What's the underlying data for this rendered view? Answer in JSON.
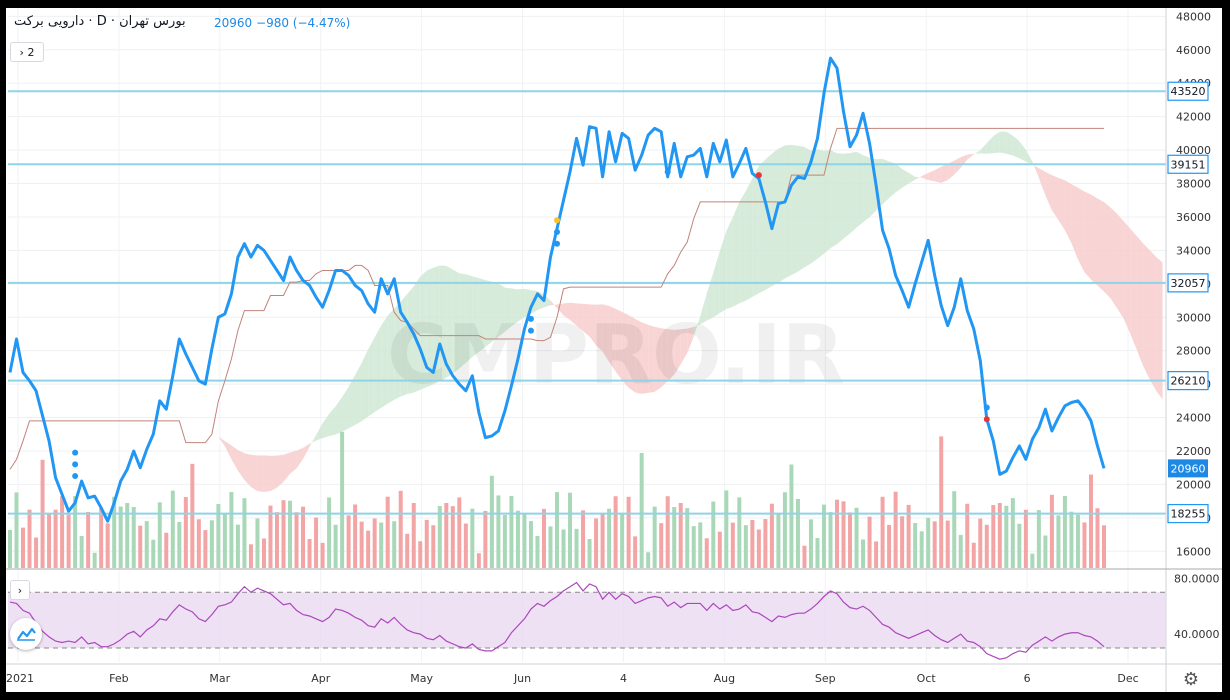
{
  "header": {
    "name": "بورس تهران · D · دارویی برکت",
    "price": "20960",
    "change": "−980 (−4.47%)"
  },
  "controls": {
    "studies_count": "2",
    "osc_toggle": "›"
  },
  "watermark": "CMPRO.IR",
  "colors": {
    "price_line": "#2196f3",
    "base_line": "#c0847b",
    "cloud_green": "#cfe8d3",
    "cloud_red": "#f8cccc",
    "hline": "#8fd3e8",
    "label_bg": "#2196f3",
    "label_current": "#1e88e5",
    "vol_green": "#a9d8b8",
    "vol_red": "#f3a5a5",
    "rsi_line": "#ab47bc",
    "rsi_band": "#ead7f0"
  },
  "chart_data": [
    {
      "type": "line",
      "title": "",
      "x_tick_labels": [
        "2021",
        "Feb",
        "Mar",
        "Apr",
        "May",
        "Jun",
        "4",
        "Aug",
        "Sep",
        "Oct",
        "6",
        "Dec"
      ],
      "y_ticks": [
        16000,
        18000,
        20000,
        22000,
        24000,
        26000,
        28000,
        30000,
        32000,
        34000,
        36000,
        38000,
        40000,
        42000,
        44000,
        46000,
        48000
      ],
      "ylim": [
        15000,
        48500
      ],
      "horizontal_levels": [
        43520,
        39151,
        32057,
        26210,
        18255
      ],
      "current_price": 20960,
      "series": [
        {
          "values": [
            26700,
            28700,
            26700,
            26200,
            25600,
            24100,
            22600,
            20400,
            19400,
            18400,
            18900,
            20200,
            19200,
            19300,
            18600,
            17800,
            18900,
            20200,
            20900,
            22000,
            21000,
            22100,
            23000,
            25000,
            24500,
            26500,
            28700,
            27800,
            27000,
            26200,
            26000,
            28100,
            30000,
            30200,
            31400,
            33600,
            34400,
            33600,
            34300,
            34000,
            33400,
            32800,
            32200,
            33600,
            32800,
            32200,
            31900,
            31200,
            30600,
            31600,
            32800,
            32800,
            32500,
            31900,
            31600,
            30800,
            30300,
            32300,
            31400,
            32300,
            30300,
            29700,
            29000,
            28100,
            27000,
            26700,
            28400,
            27200,
            26500,
            26000,
            25600,
            26500,
            24300,
            22800,
            22900,
            23200,
            24400,
            25900,
            27500,
            29300,
            30600,
            31400,
            31000,
            33600,
            35300,
            37000,
            38700,
            40700,
            39100,
            41400,
            41300,
            38400,
            41100,
            39300,
            41000,
            40700,
            38800,
            39700,
            40900,
            41300,
            41100,
            38400,
            40400,
            38400,
            39600,
            39700,
            40100,
            38400,
            40400,
            39300,
            40600,
            38400,
            39200,
            40100,
            38600,
            38300,
            36900,
            35300,
            36800,
            36900,
            37900,
            38400,
            38300,
            39300,
            40700,
            43400,
            45500,
            44900,
            42300,
            40200,
            40900,
            42200,
            40400,
            37900,
            35200,
            34100,
            32500,
            31600,
            30600,
            32000,
            33300,
            34600,
            32500,
            30700,
            29500,
            30600,
            32300,
            30400,
            29300,
            27400,
            23900,
            22600,
            20600,
            20800,
            21600,
            22300,
            21500,
            22700,
            23400,
            24500,
            23200,
            24000,
            24700,
            24900,
            25000,
            24500,
            23800,
            22300,
            20960
          ],
          "color": "#2196f3"
        },
        {
          "values": [
            20900,
            21500,
            22600,
            23800,
            23800,
            23800,
            23800,
            23800,
            23800,
            23800,
            23800,
            23800,
            23800,
            23800,
            23800,
            23800,
            23800,
            23800,
            23800,
            23800,
            23800,
            23800,
            23800,
            23800,
            23800,
            23800,
            23800,
            22500,
            22500,
            22500,
            22500,
            23000,
            25000,
            26200,
            27500,
            29200,
            30400,
            30400,
            30400,
            30400,
            31300,
            31300,
            31300,
            32100,
            32100,
            32200,
            32200,
            32600,
            32800,
            32800,
            32800,
            32800,
            32800,
            33100,
            33100,
            32800,
            31900,
            31900,
            31900,
            30300,
            29800,
            29700,
            29300,
            28900,
            28900,
            28900,
            28900,
            28900,
            28900,
            28900,
            28900,
            28900,
            28900,
            28700,
            28700,
            28700,
            28700,
            28700,
            28700,
            28700,
            28700,
            28600,
            28600,
            28800,
            30000,
            31700,
            31800,
            31800,
            31800,
            31800,
            31800,
            31800,
            31800,
            31800,
            31800,
            31800,
            31800,
            31800,
            31800,
            31800,
            31800,
            32600,
            33100,
            33900,
            34500,
            35900,
            36900,
            36900,
            36900,
            36900,
            36900,
            36900,
            36900,
            36900,
            36900,
            36900,
            36900,
            36900,
            36900,
            36900,
            38500,
            38500,
            38500,
            38500,
            38500,
            38500,
            40100,
            41300,
            41300,
            41300,
            41300,
            41300,
            41300,
            41300,
            41300,
            41300,
            41300,
            41300,
            41300,
            41300,
            41300,
            41300,
            41300,
            41300,
            41300,
            41300,
            41300,
            41300,
            41300,
            41300,
            41300,
            41300,
            41300,
            41300,
            41300,
            41300,
            41300,
            41300,
            41300,
            41300,
            41300,
            41300,
            41300,
            41300,
            41300,
            41300,
            41300,
            41300,
            41300
          ],
          "color": "#c0847b"
        }
      ]
    },
    {
      "type": "line",
      "title": "",
      "y_ticks": [
        40,
        80
      ],
      "y_tick_labels": [
        "40.0000",
        "80.0000"
      ],
      "ylim": [
        20,
        86
      ],
      "bands": [
        30,
        70
      ],
      "series": [
        {
          "values": [
            63,
            62,
            57,
            55,
            48,
            42,
            38,
            35,
            34,
            35,
            34,
            38,
            33,
            34,
            31,
            31,
            33,
            36,
            40,
            42,
            38,
            43,
            46,
            51,
            50,
            56,
            61,
            58,
            56,
            51,
            49,
            54,
            60,
            61,
            63,
            69,
            74,
            70,
            73,
            71,
            69,
            65,
            61,
            62,
            57,
            54,
            53,
            51,
            49,
            52,
            58,
            57,
            55,
            52,
            50,
            46,
            45,
            51,
            48,
            52,
            47,
            43,
            41,
            40,
            37,
            36,
            39,
            35,
            33,
            31,
            30,
            33,
            29,
            28,
            28,
            31,
            34,
            41,
            46,
            51,
            58,
            62,
            60,
            64,
            67,
            71,
            74,
            77,
            71,
            76,
            74,
            65,
            70,
            65,
            69,
            67,
            62,
            64,
            66,
            67,
            66,
            60,
            63,
            59,
            62,
            62,
            62,
            57,
            62,
            58,
            61,
            57,
            58,
            61,
            56,
            55,
            52,
            49,
            53,
            52,
            54,
            55,
            55,
            58,
            62,
            67,
            71,
            69,
            63,
            59,
            58,
            60,
            57,
            52,
            47,
            45,
            41,
            39,
            37,
            39,
            41,
            43,
            39,
            36,
            34,
            37,
            40,
            35,
            34,
            31,
            26,
            24,
            22,
            23,
            26,
            28,
            27,
            32,
            35,
            38,
            35,
            38,
            40,
            41,
            41,
            39,
            38,
            35,
            31
          ]
        }
      ]
    }
  ]
}
